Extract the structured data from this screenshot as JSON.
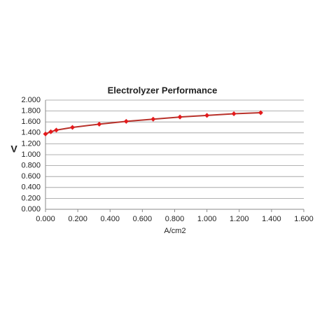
{
  "chart_data": {
    "type": "line",
    "title": "Electrolyzer Performance",
    "x_label": "A/cm2",
    "y_label": "V",
    "x": [
      0.0,
      0.033,
      0.067,
      0.167,
      0.333,
      0.5,
      0.667,
      0.833,
      1.0,
      1.167,
      1.333
    ],
    "values": [
      1.38,
      1.42,
      1.45,
      1.5,
      1.56,
      1.61,
      1.65,
      1.69,
      1.72,
      1.75,
      1.77
    ],
    "color": "#b8312a",
    "marker_color": "#e41a1c",
    "xlim": [
      0,
      1.6
    ],
    "xticks": [
      {
        "value": 0,
        "label": "0.000"
      },
      {
        "value": 0.2,
        "label": "0.200"
      },
      {
        "value": 0.4,
        "label": "0.400"
      },
      {
        "value": 0.6,
        "label": "0.600"
      },
      {
        "value": 0.8,
        "label": "0.800"
      },
      {
        "value": 1.0,
        "label": "1.000"
      },
      {
        "value": 1.2,
        "label": "1.200"
      },
      {
        "value": 1.4,
        "label": "1.400"
      },
      {
        "value": 1.6,
        "label": "1.600"
      }
    ],
    "ylim": [
      0,
      2.0
    ],
    "yticks": [
      {
        "value": 0,
        "label": "0.000"
      },
      {
        "value": 0.2,
        "label": "0.200"
      },
      {
        "value": 0.4,
        "label": "0.400"
      },
      {
        "value": 0.6,
        "label": "0.600"
      },
      {
        "value": 0.8,
        "label": "0.800"
      },
      {
        "value": 1.0,
        "label": "1.000"
      },
      {
        "value": 1.2,
        "label": "1.200"
      },
      {
        "value": 1.4,
        "label": "1.400"
      },
      {
        "value": 1.6,
        "label": "1.600"
      },
      {
        "value": 1.8,
        "label": "1.800"
      },
      {
        "value": 2.0,
        "label": "2.000"
      }
    ],
    "grid": true
  }
}
